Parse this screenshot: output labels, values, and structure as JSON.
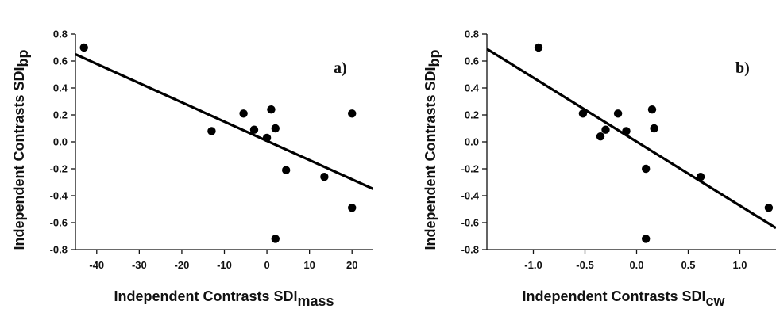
{
  "chart_data": [
    {
      "type": "scatter",
      "panel_label": "a)",
      "xlabel": "Independent Contrasts SDI",
      "xlabel_sub": "mass",
      "ylabel": "Independent Contrasts SDI",
      "ylabel_sub": "bp",
      "xlim": [
        -45,
        25
      ],
      "ylim": [
        -0.8,
        0.8
      ],
      "xticks": [
        -40,
        -30,
        -20,
        -10,
        0,
        10,
        20
      ],
      "xtick_labels": [
        "-40",
        "-30",
        "-20",
        "-10",
        "0",
        "10",
        "20"
      ],
      "yticks": [
        -0.8,
        -0.6,
        -0.4,
        -0.2,
        0.0,
        0.2,
        0.4,
        0.6,
        0.8
      ],
      "ytick_labels": [
        "-0.8",
        "-0.6",
        "-0.4",
        "-0.2",
        "0.0",
        "0.2",
        "0.4",
        "0.6",
        "0.8"
      ],
      "points": [
        {
          "x": -43.0,
          "y": 0.7
        },
        {
          "x": -13.0,
          "y": 0.08
        },
        {
          "x": -5.5,
          "y": 0.21
        },
        {
          "x": -3.0,
          "y": 0.09
        },
        {
          "x": 0.0,
          "y": 0.03
        },
        {
          "x": 1.0,
          "y": 0.24
        },
        {
          "x": 2.0,
          "y": 0.1
        },
        {
          "x": 4.5,
          "y": -0.21
        },
        {
          "x": 13.5,
          "y": -0.26
        },
        {
          "x": 20.0,
          "y": 0.21
        },
        {
          "x": 20.0,
          "y": -0.49
        },
        {
          "x": 2.0,
          "y": -0.72
        }
      ],
      "fit_line": {
        "x": [
          -45,
          25
        ],
        "y": [
          0.65,
          -0.35
        ]
      },
      "grid": false
    },
    {
      "type": "scatter",
      "panel_label": "b)",
      "xlabel": "Independent Contrasts SDI",
      "xlabel_sub": "cw",
      "ylabel": "Independent Contrasts SDI",
      "ylabel_sub": "bp",
      "xlim": [
        -1.45,
        1.35
      ],
      "ylim": [
        -0.8,
        0.8
      ],
      "xticks": [
        -1.0,
        -0.5,
        0.0,
        0.5,
        1.0
      ],
      "xtick_labels": [
        "-1.0",
        "-0.5",
        "0.0",
        "0.5",
        "1.0"
      ],
      "yticks": [
        -0.8,
        -0.6,
        -0.4,
        -0.2,
        0.0,
        0.2,
        0.4,
        0.6,
        0.8
      ],
      "ytick_labels": [
        "-0.8",
        "-0.6",
        "-0.4",
        "-0.2",
        "0.0",
        "0.2",
        "0.4",
        "0.6",
        "0.8"
      ],
      "points": [
        {
          "x": -0.95,
          "y": 0.7
        },
        {
          "x": -0.52,
          "y": 0.21
        },
        {
          "x": -0.35,
          "y": 0.04
        },
        {
          "x": -0.3,
          "y": 0.09
        },
        {
          "x": -0.18,
          "y": 0.21
        },
        {
          "x": -0.1,
          "y": 0.08
        },
        {
          "x": 0.09,
          "y": -0.2
        },
        {
          "x": 0.15,
          "y": 0.24
        },
        {
          "x": 0.17,
          "y": 0.1
        },
        {
          "x": 0.62,
          "y": -0.26
        },
        {
          "x": 1.28,
          "y": -0.49
        },
        {
          "x": 0.09,
          "y": -0.72
        }
      ],
      "fit_line": {
        "x": [
          -1.45,
          1.35
        ],
        "y": [
          0.69,
          -0.64
        ]
      },
      "grid": false
    }
  ]
}
